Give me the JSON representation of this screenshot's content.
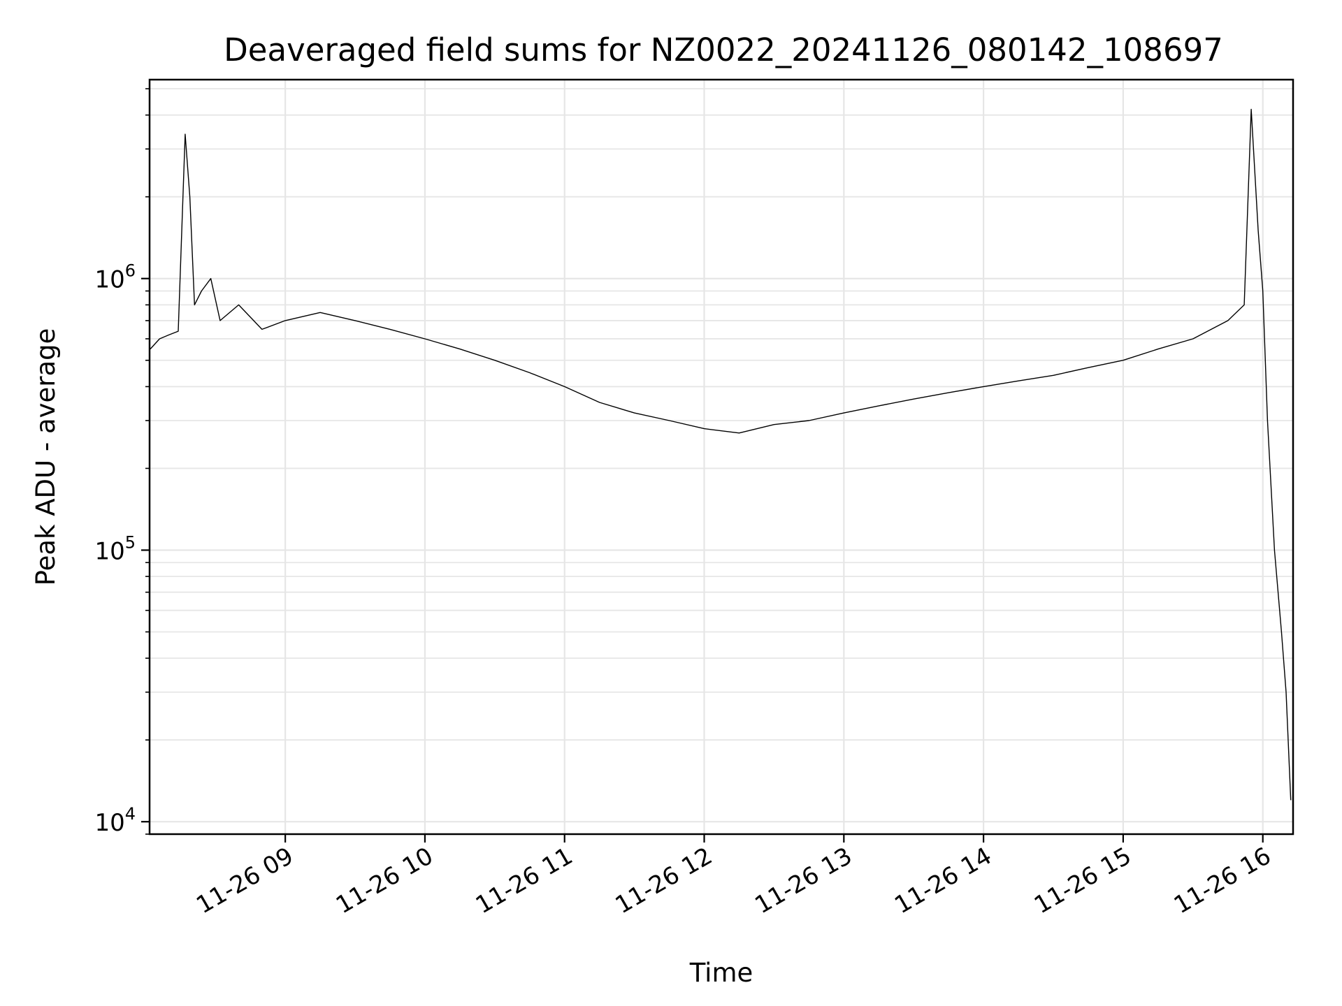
{
  "chart_data": {
    "type": "line",
    "title": "Deaveraged field sums for NZ0022_20241126_080142_108697",
    "xlabel": "Time",
    "ylabel": "Peak ADU - average",
    "y_scale": "log",
    "ylim": [
      9000,
      5400000
    ],
    "xlim": [
      "2024-11-26 08:01:42",
      "2024-11-26 16:13:00"
    ],
    "grid": true,
    "line_color": "#000000",
    "grid_color": "#e6e6e6",
    "x_ticks": [
      {
        "time": "2024-11-26 09:00",
        "label": "11-26 09"
      },
      {
        "time": "2024-11-26 10:00",
        "label": "11-26 10"
      },
      {
        "time": "2024-11-26 11:00",
        "label": "11-26 11"
      },
      {
        "time": "2024-11-26 12:00",
        "label": "11-26 12"
      },
      {
        "time": "2024-11-26 13:00",
        "label": "11-26 13"
      },
      {
        "time": "2024-11-26 14:00",
        "label": "11-26 14"
      },
      {
        "time": "2024-11-26 15:00",
        "label": "11-26 15"
      },
      {
        "time": "2024-11-26 16:00",
        "label": "11-26 16"
      }
    ],
    "y_ticks": [
      {
        "value": 10000,
        "base": "10",
        "exp": "4"
      },
      {
        "value": 100000,
        "base": "10",
        "exp": "5"
      },
      {
        "value": 1000000,
        "base": "10",
        "exp": "6"
      }
    ],
    "series": [
      {
        "x": [
          "2024-11-26 08:02",
          "2024-11-26 08:06",
          "2024-11-26 08:10",
          "2024-11-26 08:14",
          "2024-11-26 08:17",
          "2024-11-26 08:19",
          "2024-11-26 08:21",
          "2024-11-26 08:24",
          "2024-11-26 08:28",
          "2024-11-26 08:32",
          "2024-11-26 08:40",
          "2024-11-26 08:50",
          "2024-11-26 09:00",
          "2024-11-26 09:15",
          "2024-11-26 09:30",
          "2024-11-26 09:45",
          "2024-11-26 10:00",
          "2024-11-26 10:15",
          "2024-11-26 10:30",
          "2024-11-26 10:45",
          "2024-11-26 11:00",
          "2024-11-26 11:15",
          "2024-11-26 11:30",
          "2024-11-26 11:45",
          "2024-11-26 12:00",
          "2024-11-26 12:15",
          "2024-11-26 12:30",
          "2024-11-26 12:45",
          "2024-11-26 13:00",
          "2024-11-26 13:15",
          "2024-11-26 13:30",
          "2024-11-26 13:45",
          "2024-11-26 14:00",
          "2024-11-26 14:15",
          "2024-11-26 14:30",
          "2024-11-26 14:45",
          "2024-11-26 15:00",
          "2024-11-26 15:15",
          "2024-11-26 15:30",
          "2024-11-26 15:45",
          "2024-11-26 15:52",
          "2024-11-26 15:55",
          "2024-11-26 15:58",
          "2024-11-26 16:00",
          "2024-11-26 16:02",
          "2024-11-26 16:05",
          "2024-11-26 16:08",
          "2024-11-26 16:10",
          "2024-11-26 16:12"
        ],
        "y": [
          550000,
          600000,
          620000,
          640000,
          3400000,
          2000000,
          800000,
          900000,
          1000000,
          700000,
          800000,
          650000,
          700000,
          750000,
          700000,
          650000,
          600000,
          550000,
          500000,
          450000,
          400000,
          350000,
          320000,
          300000,
          280000,
          270000,
          290000,
          300000,
          320000,
          340000,
          360000,
          380000,
          400000,
          420000,
          440000,
          470000,
          500000,
          550000,
          600000,
          700000,
          800000,
          4200000,
          1500000,
          900000,
          300000,
          100000,
          50000,
          30000,
          12000
        ]
      }
    ]
  }
}
